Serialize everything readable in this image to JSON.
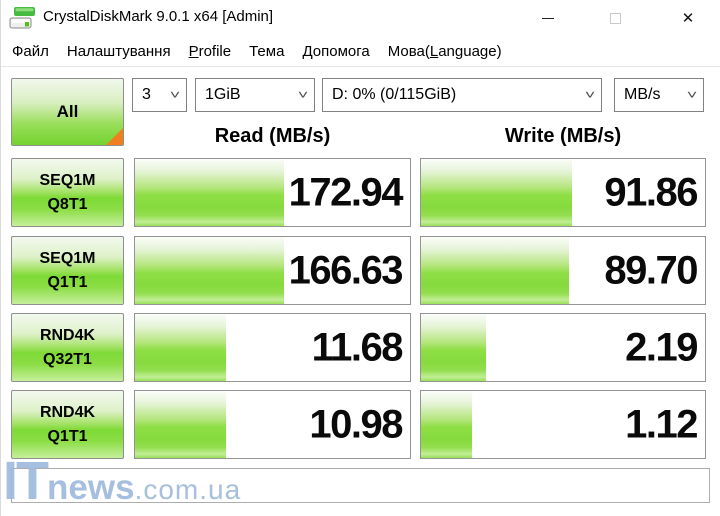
{
  "window": {
    "title": "CrystalDiskMark 9.0.1 x64 [Admin]",
    "close_glyph": "✕"
  },
  "menu": {
    "items": [
      {
        "pre": "Файл",
        "u": "",
        "post": ""
      },
      {
        "pre": "Налаштування",
        "u": "",
        "post": ""
      },
      {
        "pre": "",
        "u": "P",
        "post": "rofile"
      },
      {
        "pre": "Тема",
        "u": "",
        "post": ""
      },
      {
        "pre": "Допомога",
        "u": "",
        "post": ""
      },
      {
        "pre": "Мова(",
        "u": "L",
        "post": "anguage)"
      }
    ]
  },
  "toolbar": {
    "all_button_label": "All",
    "test_count": "3",
    "test_size": "1GiB",
    "target_drive": "D: 0% (0/115GiB)",
    "unit": "MB/s",
    "chevron": "˅"
  },
  "columns": {
    "read_header": "Read (MB/s)",
    "write_header": "Write (MB/s)"
  },
  "results": {
    "rows": [
      {
        "label_line1": "SEQ1M",
        "label_line2": "Q8T1",
        "read": "172.94",
        "write": "91.86",
        "read_bar_pct": 54,
        "write_bar_pct": 53
      },
      {
        "label_line1": "SEQ1M",
        "label_line2": "Q1T1",
        "read": "166.63",
        "write": "89.70",
        "read_bar_pct": 54,
        "write_bar_pct": 52
      },
      {
        "label_line1": "RND4K",
        "label_line2": "Q32T1",
        "read": "11.68",
        "write": "2.19",
        "read_bar_pct": 33,
        "write_bar_pct": 23
      },
      {
        "label_line1": "RND4K",
        "label_line2": "Q1T1",
        "read": "10.98",
        "write": "1.12",
        "read_bar_pct": 33,
        "write_bar_pct": 18
      }
    ]
  },
  "footer": {
    "comment_value": "",
    "watermark_it": "IT",
    "watermark_news": "news",
    "watermark_domain": ".com.ua"
  },
  "colors": {
    "green_bright": "#84db3a",
    "orange_corner": "#f07f1e",
    "watermark_blue": "#9db9dc"
  }
}
